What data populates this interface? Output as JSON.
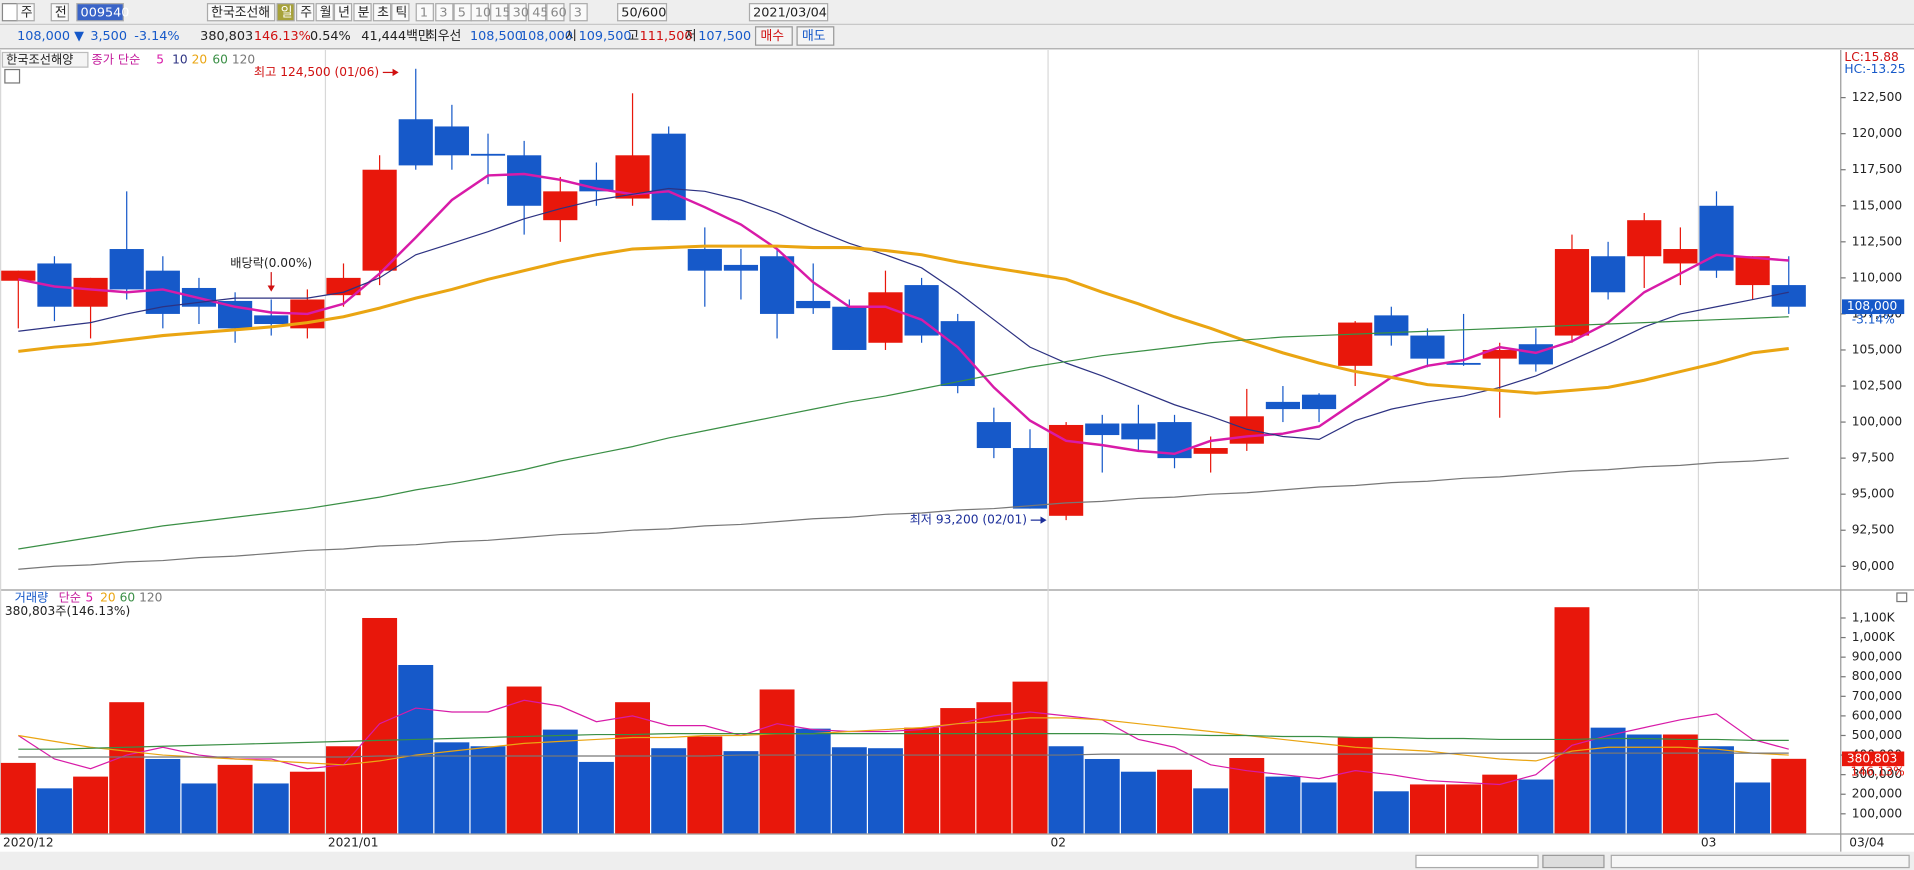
{
  "toolbar": {
    "row1": [
      "주",
      "전",
      "009540",
      "한국조선해",
      "일",
      "주",
      "월",
      "년",
      "분",
      "초",
      "틱",
      "1",
      "3",
      "5",
      "10",
      "15",
      "30",
      "45",
      "60",
      "3",
      "50/600",
      "2021/03/04"
    ],
    "row2": [
      "108,000 ▼",
      "3,500",
      "-3.14%",
      "380,803",
      "146.13%",
      "0.54%",
      "41,444백만",
      "최우선",
      "108,500",
      "108,000",
      "시",
      "109,500",
      "고",
      "111,500",
      "저",
      "107,500",
      "매수",
      "매도"
    ]
  },
  "chart_data": [
    {
      "type": "candlestick",
      "title": "한국조선해양",
      "legend_label": "종가 단순",
      "categories": [
        "2020/12",
        null,
        null,
        null,
        null,
        null,
        null,
        null,
        null,
        "2021/01",
        null,
        null,
        null,
        null,
        null,
        null,
        null,
        null,
        null,
        null,
        null,
        null,
        null,
        null,
        null,
        null,
        null,
        null,
        null,
        "02",
        null,
        null,
        null,
        null,
        null,
        null,
        null,
        null,
        null,
        null,
        null,
        null,
        null,
        null,
        null,
        null,
        null,
        "03",
        null,
        null
      ],
      "last_date": "03/04",
      "open": [
        109800,
        111000,
        108000,
        112000,
        110500,
        109300,
        108400,
        107400,
        106500,
        108800,
        110500,
        121000,
        120500,
        118600,
        118500,
        114000,
        116800,
        115500,
        120000,
        112000,
        110900,
        111500,
        108400,
        108000,
        105500,
        109500,
        107000,
        100000,
        98200,
        93500,
        99900,
        99900,
        100000,
        97800,
        98500,
        101400,
        101900,
        103900,
        107400,
        106000,
        104100,
        104400,
        105400,
        106000,
        111500,
        111500,
        111000,
        115000,
        109500,
        109500
      ],
      "high": [
        110500,
        111500,
        110000,
        116000,
        111500,
        110000,
        109000,
        108500,
        109200,
        111000,
        118500,
        124500,
        122000,
        120000,
        119500,
        117000,
        118000,
        122800,
        120500,
        113500,
        112000,
        112000,
        111000,
        108500,
        110500,
        110000,
        107500,
        101000,
        99500,
        100000,
        100500,
        101200,
        100500,
        99000,
        102300,
        102500,
        102000,
        107000,
        108000,
        106500,
        107500,
        105500,
        106500,
        113000,
        112500,
        114500,
        113500,
        116000,
        111500,
        111500
      ],
      "low": [
        106500,
        107000,
        105800,
        108500,
        106500,
        106800,
        105500,
        106000,
        105800,
        108000,
        109500,
        117500,
        117500,
        116500,
        113000,
        112500,
        115000,
        115000,
        114000,
        108000,
        108500,
        105800,
        107500,
        105000,
        105000,
        105500,
        102000,
        97500,
        94000,
        93200,
        96500,
        98000,
        96800,
        96500,
        98000,
        100000,
        100000,
        102500,
        105300,
        103800,
        103900,
        100300,
        103500,
        105500,
        108500,
        109300,
        109500,
        110000,
        108500,
        107500
      ],
      "close": [
        110500,
        108000,
        110000,
        109200,
        107500,
        108000,
        106500,
        106800,
        108500,
        110000,
        117500,
        117800,
        118500,
        118500,
        115000,
        116000,
        116000,
        118500,
        114000,
        110500,
        110500,
        107500,
        107900,
        105000,
        109000,
        106000,
        102500,
        98200,
        94000,
        99800,
        99100,
        98800,
        97500,
        98200,
        100400,
        100900,
        100900,
        106900,
        106000,
        104400,
        104000,
        105000,
        104000,
        112000,
        109000,
        114000,
        112000,
        110500,
        111500,
        108000
      ],
      "up_color": "#e8170b",
      "down_color": "#1659c9",
      "series": [
        {
          "name": "5",
          "color": "#d81ba8",
          "values": [
            109900,
            109400,
            109200,
            109000,
            109200,
            108600,
            108000,
            107600,
            107500,
            108200,
            110300,
            112800,
            115400,
            117100,
            117200,
            116800,
            116200,
            115800,
            116000,
            114900,
            113700,
            112000,
            109700,
            108000,
            108000,
            107100,
            105200,
            102400,
            100100,
            98700,
            98400,
            98000,
            97800,
            98700,
            99000,
            99200,
            99700,
            101400,
            103100,
            103900,
            104300,
            105200,
            104800,
            105600,
            106900,
            109000,
            110300,
            111600,
            111400,
            111200
          ]
        },
        {
          "name": "10",
          "color": "#2d3282",
          "values": [
            106300,
            106600,
            106900,
            107500,
            108000,
            108300,
            108600,
            108600,
            108600,
            109000,
            110000,
            111600,
            112400,
            113200,
            114100,
            114800,
            115400,
            115800,
            116200,
            116000,
            115400,
            114500,
            113400,
            112400,
            111600,
            110700,
            109000,
            107100,
            105200,
            104100,
            103200,
            102200,
            101200,
            100400,
            99500,
            99000,
            98800,
            100100,
            100900,
            101400,
            101800,
            102400,
            103200,
            104300,
            105400,
            106600,
            107500,
            108000,
            108500,
            109000
          ]
        },
        {
          "name": "20",
          "color": "#eaa512",
          "values": [
            104900,
            105200,
            105400,
            105700,
            106000,
            106200,
            106400,
            106600,
            106900,
            107300,
            107900,
            108600,
            109200,
            109900,
            110500,
            111100,
            111600,
            112000,
            112100,
            112200,
            112200,
            112200,
            112100,
            112100,
            111900,
            111600,
            111100,
            110700,
            110300,
            109900,
            109000,
            108200,
            107300,
            106500,
            105600,
            104800,
            104100,
            103500,
            103100,
            102600,
            102400,
            102200,
            102000,
            102200,
            102400,
            102900,
            103500,
            104100,
            104800,
            105100
          ]
        },
        {
          "name": "60",
          "color": "#3a8f45",
          "values": [
            91200,
            91600,
            92000,
            92400,
            92800,
            93100,
            93400,
            93700,
            94000,
            94400,
            94800,
            95300,
            95700,
            96200,
            96700,
            97300,
            97800,
            98300,
            98900,
            99400,
            99900,
            100400,
            100900,
            101400,
            101800,
            102300,
            102800,
            103300,
            103800,
            104200,
            104600,
            104900,
            105200,
            105500,
            105700,
            105900,
            106000,
            106100,
            106200,
            106300,
            106400,
            106500,
            106600,
            106700,
            106800,
            106900,
            107000,
            107100,
            107200,
            107300
          ]
        },
        {
          "name": "120",
          "color": "#777777",
          "values": [
            89800,
            90000,
            90100,
            90300,
            90400,
            90600,
            90700,
            90900,
            91100,
            91200,
            91400,
            91500,
            91700,
            91800,
            92000,
            92200,
            92300,
            92500,
            92600,
            92800,
            92900,
            93100,
            93300,
            93400,
            93600,
            93700,
            93900,
            94000,
            94200,
            94400,
            94500,
            94700,
            94800,
            95000,
            95100,
            95300,
            95500,
            95600,
            95800,
            95900,
            96100,
            96200,
            96400,
            96600,
            96700,
            96900,
            97000,
            97200,
            97300,
            97500
          ]
        }
      ],
      "ylim": [
        88400,
        125800
      ],
      "yticks": [
        {
          "value": 90000,
          "label": "90,000"
        },
        {
          "value": 92500,
          "label": "92,500"
        },
        {
          "value": 95000,
          "label": "95,000"
        },
        {
          "value": 97500,
          "label": "97,500"
        },
        {
          "value": 100000,
          "label": "100,000"
        },
        {
          "value": 102500,
          "label": "102,500"
        },
        {
          "value": 105000,
          "label": "105,000"
        },
        {
          "value": 107500,
          "label": "107,500"
        },
        {
          "value": 110000,
          "label": "110,000"
        },
        {
          "value": 112500,
          "label": "112,500"
        },
        {
          "value": 115000,
          "label": "115,000"
        },
        {
          "value": 117500,
          "label": "117,500"
        },
        {
          "value": 120000,
          "label": "120,000"
        },
        {
          "value": 122500,
          "label": "122,500"
        }
      ],
      "grid": false,
      "annotations": {
        "high": "최고 124,500 (01/06)",
        "low": "최저 93,200 (02/01)",
        "dividend": "배당락(0.00%)",
        "lc": "LC:15.88",
        "hc": "HC:-13.25"
      },
      "last_price_label": "108,000",
      "last_change_label": "-3.14%"
    },
    {
      "type": "bar",
      "title": "거래량",
      "legend_label": "단순",
      "info": "380,803주(146.13%)",
      "values": [
        360000,
        230000,
        290000,
        670000,
        380000,
        255000,
        350000,
        255000,
        315000,
        445000,
        1100000,
        860000,
        465000,
        445000,
        750000,
        530000,
        365000,
        670000,
        435000,
        495000,
        420000,
        735000,
        535000,
        440000,
        435000,
        540000,
        640000,
        670000,
        775000,
        445000,
        380000,
        315000,
        325000,
        230000,
        385000,
        290000,
        260000,
        490000,
        215000,
        250000,
        250000,
        300000,
        275000,
        1155000,
        540000,
        505000,
        505000,
        445000,
        260000,
        380803
      ],
      "up_color": "#e8170b",
      "down_color": "#1659c9",
      "series": [
        {
          "name": "5",
          "color": "#d81ba8",
          "values": [
            500000,
            380000,
            330000,
            400000,
            440000,
            400000,
            380000,
            380000,
            330000,
            350000,
            560000,
            640000,
            620000,
            620000,
            680000,
            650000,
            570000,
            600000,
            550000,
            550000,
            500000,
            560000,
            530000,
            520000,
            520000,
            530000,
            560000,
            600000,
            620000,
            600000,
            580000,
            480000,
            440000,
            350000,
            320000,
            300000,
            280000,
            320000,
            300000,
            270000,
            260000,
            250000,
            300000,
            450000,
            500000,
            540000,
            580000,
            610000,
            480000,
            430000
          ]
        },
        {
          "name": "20",
          "color": "#eaa512",
          "values": [
            500000,
            470000,
            440000,
            420000,
            400000,
            390000,
            380000,
            370000,
            360000,
            350000,
            370000,
            400000,
            420000,
            440000,
            460000,
            470000,
            480000,
            490000,
            490000,
            500000,
            500000,
            510000,
            510000,
            520000,
            530000,
            540000,
            560000,
            570000,
            590000,
            590000,
            580000,
            560000,
            540000,
            520000,
            500000,
            480000,
            460000,
            440000,
            430000,
            420000,
            400000,
            380000,
            370000,
            420000,
            440000,
            440000,
            440000,
            430000,
            410000,
            400000
          ]
        },
        {
          "name": "60",
          "color": "#3a8f45",
          "values": [
            430000,
            430000,
            435000,
            440000,
            445000,
            450000,
            455000,
            460000,
            465000,
            470000,
            475000,
            480000,
            485000,
            490000,
            495000,
            500000,
            505000,
            505000,
            510000,
            510000,
            510000,
            510000,
            510000,
            510000,
            510000,
            510000,
            510000,
            510000,
            510000,
            510000,
            510000,
            505000,
            505000,
            500000,
            500000,
            495000,
            495000,
            490000,
            490000,
            485000,
            485000,
            480000,
            480000,
            480000,
            485000,
            485000,
            480000,
            480000,
            475000,
            475000
          ]
        },
        {
          "name": "120",
          "color": "#777777",
          "values": [
            390000,
            390000,
            390000,
            390000,
            390000,
            390000,
            390000,
            390000,
            390000,
            390000,
            395000,
            395000,
            395000,
            395000,
            395000,
            395000,
            395000,
            395000,
            395000,
            395000,
            400000,
            400000,
            400000,
            400000,
            400000,
            400000,
            400000,
            400000,
            400000,
            400000,
            405000,
            405000,
            405000,
            405000,
            405000,
            405000,
            405000,
            405000,
            405000,
            405000,
            410000,
            410000,
            410000,
            410000,
            410000,
            410000,
            410000,
            410000,
            410000,
            410000
          ]
        }
      ],
      "ylim": [
        0,
        1240000
      ],
      "yticks": [
        {
          "value": 100000,
          "label": "100,000"
        },
        {
          "value": 200000,
          "label": "200,000"
        },
        {
          "value": 300000,
          "label": "300,000"
        },
        {
          "value": 400000,
          "label": "400,000"
        },
        {
          "value": 500000,
          "label": "500,000"
        },
        {
          "value": 600000,
          "label": "600,000"
        },
        {
          "value": 700000,
          "label": "700,000"
        },
        {
          "value": 800000,
          "label": "800,000"
        },
        {
          "value": 900000,
          "label": "900,000"
        },
        {
          "value": 1000000,
          "label": "1,000K"
        },
        {
          "value": 1100000,
          "label": "1,100K"
        }
      ],
      "last_value_label": "380,803",
      "last_pct_label": "146.13%"
    }
  ]
}
